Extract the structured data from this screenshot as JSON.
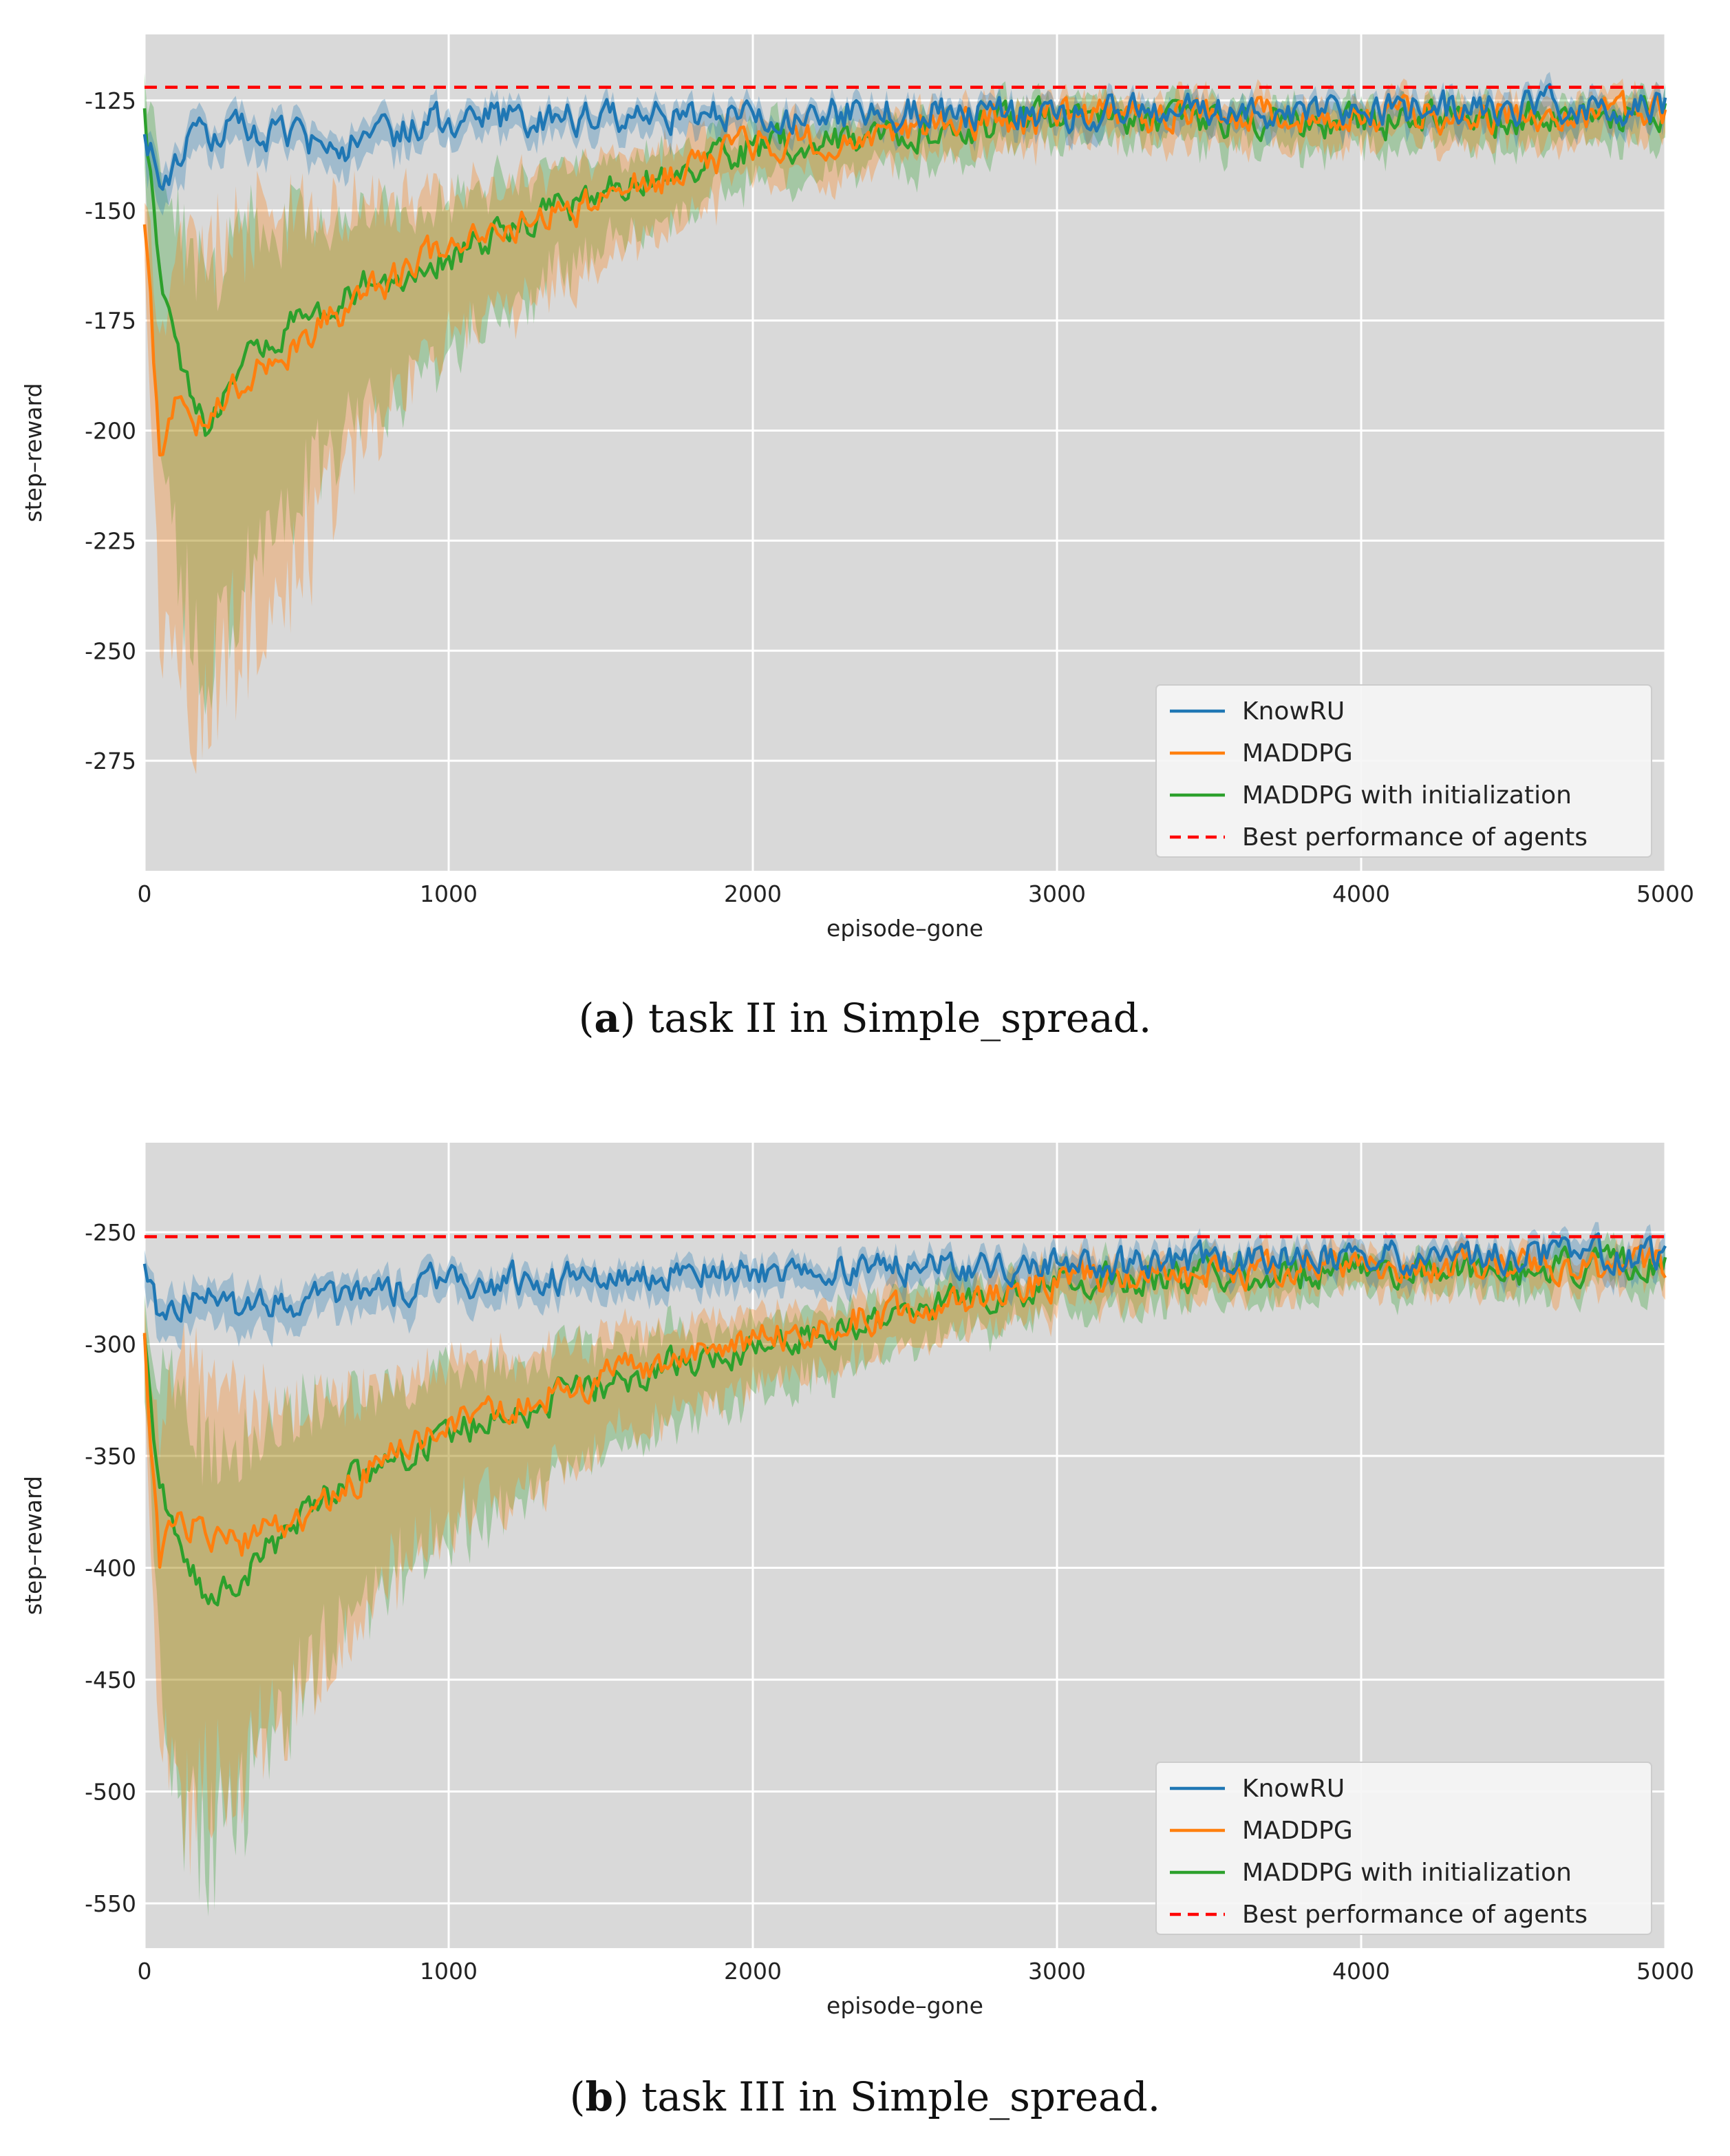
{
  "colors": {
    "knowru": "#1f77b4",
    "maddpg": "#ff7f0e",
    "init": "#2ca02c",
    "best": "#ff0000",
    "panel": "#d9d9d9",
    "grid": "#ffffff"
  },
  "captions": [
    {
      "label": "a",
      "text": "task II in Simple_spread."
    },
    {
      "label": "b",
      "text": "task III in Simple_spread."
    }
  ],
  "chart_data": [
    {
      "type": "line",
      "title": "",
      "xlabel": "episode–gone",
      "ylabel": "step–reward",
      "xlim": [
        0,
        5000
      ],
      "ylim": [
        -300,
        -110
      ],
      "xticks": [
        "0",
        "1000",
        "2000",
        "3000",
        "4000",
        "5000"
      ],
      "yticks": [
        "-125",
        "-150",
        "-175",
        "-200",
        "-225",
        "-250",
        "-275"
      ],
      "legend": [
        "KnowRU",
        "MADDPG",
        "MADDPG with initialization",
        "Best performance of agents"
      ],
      "legend_position": "lower-right",
      "best_performance": -122,
      "series": [
        {
          "name": "KnowRU",
          "x": [
            0,
            50,
            100,
            200,
            300,
            500,
            700,
            1000,
            1500,
            2000,
            3000,
            4000,
            5000
          ],
          "values": [
            -130,
            -145,
            -138,
            -133,
            -132,
            -134,
            -135,
            -129,
            -129,
            -128,
            -128,
            -127,
            -126
          ],
          "band": [
            6,
            6,
            6,
            5,
            5,
            5,
            5,
            4,
            4,
            4,
            4,
            4,
            4
          ]
        },
        {
          "name": "MADDPG",
          "x": [
            0,
            50,
            100,
            200,
            300,
            500,
            700,
            1000,
            1500,
            2000,
            3000,
            4000,
            5000
          ],
          "values": [
            -150,
            -205,
            -195,
            -198,
            -190,
            -180,
            -170,
            -158,
            -148,
            -135,
            -129,
            -128,
            -128
          ],
          "band": [
            10,
            40,
            60,
            65,
            60,
            50,
            35,
            20,
            15,
            8,
            6,
            6,
            6
          ]
        },
        {
          "name": "MADDPG with initialization",
          "x": [
            0,
            50,
            100,
            200,
            300,
            500,
            700,
            1000,
            1500,
            2000,
            3000,
            4000,
            5000
          ],
          "values": [
            -130,
            -160,
            -180,
            -200,
            -185,
            -175,
            -168,
            -160,
            -146,
            -136,
            -129,
            -130,
            -128
          ],
          "band": [
            15,
            40,
            50,
            55,
            50,
            40,
            30,
            22,
            12,
            8,
            6,
            6,
            6
          ]
        }
      ]
    },
    {
      "type": "line",
      "title": "",
      "xlabel": "episode–gone",
      "ylabel": "step–reward",
      "xlim": [
        0,
        5000
      ],
      "ylim": [
        -570,
        -210
      ],
      "xticks": [
        "0",
        "1000",
        "2000",
        "3000",
        "4000",
        "5000"
      ],
      "yticks": [
        "-250",
        "-300",
        "-350",
        "-400",
        "-450",
        "-500",
        "-550"
      ],
      "legend": [
        "KnowRU",
        "MADDPG",
        "MADDPG with initialization",
        "Best performance of agents"
      ],
      "legend_position": "lower-right",
      "best_performance": -252,
      "series": [
        {
          "name": "KnowRU",
          "x": [
            0,
            50,
            100,
            200,
            300,
            500,
            700,
            1000,
            1500,
            2000,
            3000,
            4000,
            5000
          ],
          "values": [
            -270,
            -290,
            -285,
            -275,
            -285,
            -280,
            -278,
            -272,
            -270,
            -268,
            -265,
            -262,
            -260
          ],
          "band": [
            10,
            12,
            12,
            12,
            12,
            10,
            10,
            9,
            8,
            8,
            8,
            8,
            8
          ]
        },
        {
          "name": "MADDPG",
          "x": [
            0,
            50,
            100,
            200,
            300,
            500,
            700,
            1000,
            1500,
            2000,
            3000,
            4000,
            5000
          ],
          "values": [
            -300,
            -400,
            -375,
            -385,
            -390,
            -380,
            -360,
            -335,
            -315,
            -298,
            -272,
            -265,
            -265
          ],
          "band": [
            20,
            80,
            120,
            110,
            100,
            80,
            60,
            45,
            30,
            20,
            12,
            10,
            10
          ]
        },
        {
          "name": "MADDPG with initialization",
          "x": [
            0,
            50,
            100,
            200,
            300,
            500,
            700,
            1000,
            1500,
            2000,
            3000,
            4000,
            5000
          ],
          "values": [
            -300,
            -370,
            -380,
            -410,
            -405,
            -380,
            -358,
            -340,
            -318,
            -300,
            -272,
            -267,
            -265
          ],
          "band": [
            25,
            80,
            120,
            115,
            100,
            80,
            60,
            45,
            30,
            20,
            12,
            10,
            10
          ]
        }
      ]
    }
  ]
}
